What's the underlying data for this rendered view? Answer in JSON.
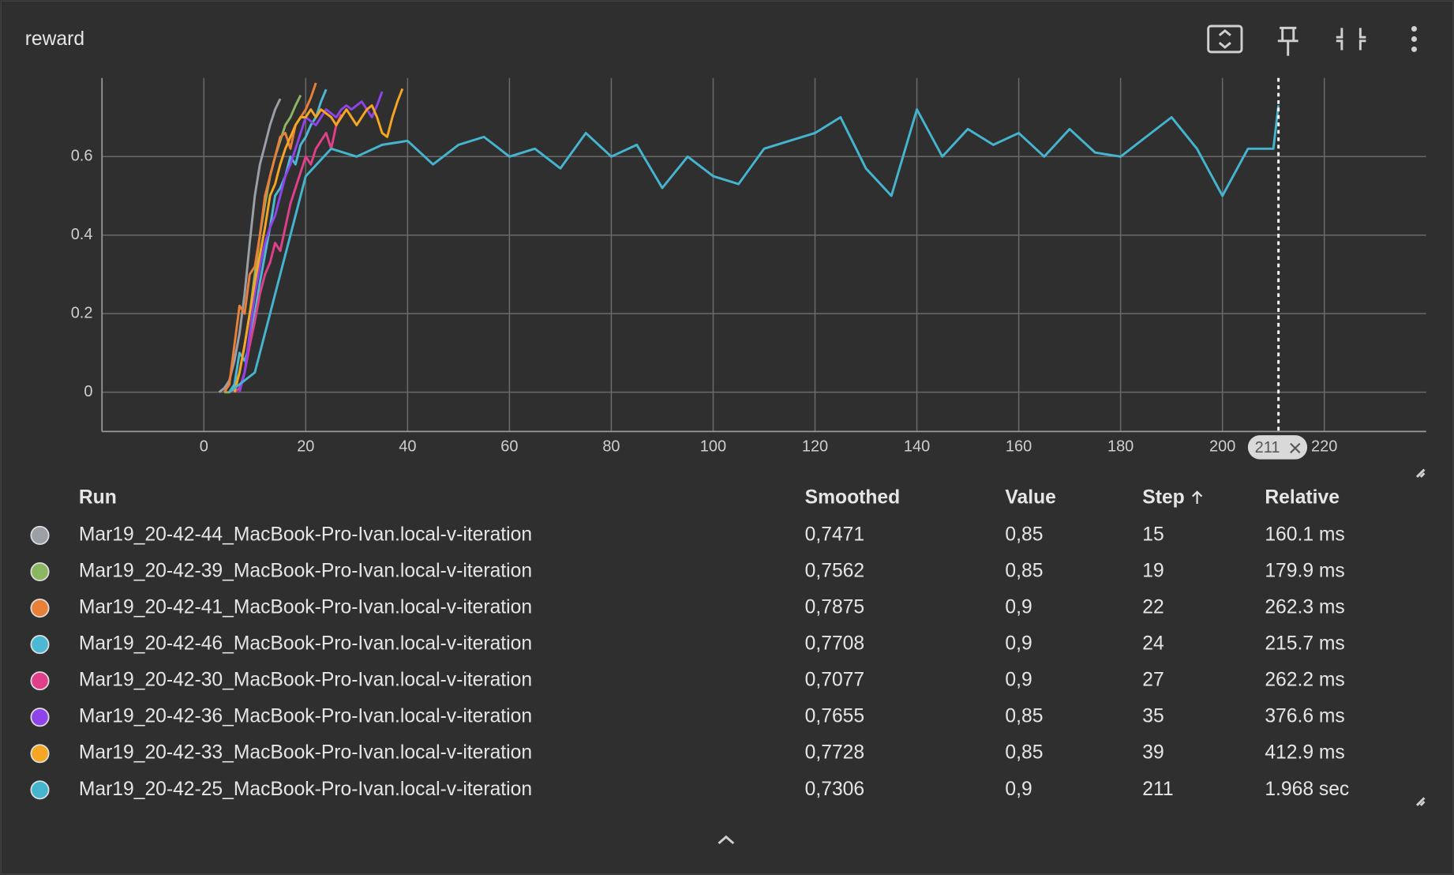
{
  "panel_title": "reward",
  "chart_data": {
    "type": "line",
    "xlim": [
      -20,
      240
    ],
    "xticks": [
      0,
      20,
      40,
      60,
      80,
      100,
      120,
      140,
      160,
      180,
      200,
      220
    ],
    "ylim": [
      -0.1,
      0.8
    ],
    "yticks": [
      0,
      0.2,
      0.4,
      0.6
    ],
    "grid": true,
    "hover_step": 211,
    "series": [
      {
        "name": "Mar19_20-42-44_MacBook-Pro-Ivan.local-v-iteration",
        "color": "#9aa0a6",
        "x": [
          3,
          4,
          5,
          6,
          7,
          8,
          9,
          10,
          11,
          12,
          13,
          14,
          15
        ],
        "values": [
          0,
          0.01,
          0.03,
          0.08,
          0.15,
          0.25,
          0.38,
          0.5,
          0.58,
          0.63,
          0.68,
          0.72,
          0.7471
        ]
      },
      {
        "name": "Mar19_20-42-39_MacBook-Pro-Ivan.local-v-iteration",
        "color": "#8ab661",
        "x": [
          4,
          5,
          6,
          7,
          8,
          9,
          10,
          11,
          12,
          13,
          14,
          15,
          16,
          17,
          18,
          19
        ],
        "values": [
          0,
          0,
          0.01,
          0.05,
          0.12,
          0.2,
          0.3,
          0.4,
          0.48,
          0.55,
          0.6,
          0.64,
          0.68,
          0.7,
          0.73,
          0.7562
        ]
      },
      {
        "name": "Mar19_20-42-41_MacBook-Pro-Ivan.local-v-iteration",
        "color": "#e8803a",
        "x": [
          4,
          5,
          6,
          7,
          8,
          9,
          10,
          11,
          12,
          13,
          14,
          15,
          16,
          17,
          18,
          19,
          20,
          21,
          22
        ],
        "values": [
          0,
          0.02,
          0.12,
          0.22,
          0.2,
          0.3,
          0.32,
          0.4,
          0.5,
          0.55,
          0.6,
          0.65,
          0.66,
          0.62,
          0.68,
          0.7,
          0.72,
          0.75,
          0.7875
        ]
      },
      {
        "name": "Mar19_20-42-46_MacBook-Pro-Ivan.local-v-iteration",
        "color": "#4bb8d4",
        "x": [
          5,
          6,
          7,
          8,
          9,
          10,
          11,
          12,
          13,
          14,
          15,
          16,
          17,
          18,
          19,
          20,
          21,
          22,
          23,
          24
        ],
        "values": [
          0,
          0.02,
          0.1,
          0.08,
          0.12,
          0.2,
          0.28,
          0.35,
          0.42,
          0.5,
          0.52,
          0.55,
          0.6,
          0.58,
          0.63,
          0.65,
          0.68,
          0.7,
          0.74,
          0.7708
        ]
      },
      {
        "name": "Mar19_20-42-30_MacBook-Pro-Ivan.local-v-iteration",
        "color": "#e0408a",
        "x": [
          6,
          7,
          8,
          9,
          10,
          11,
          12,
          13,
          14,
          15,
          16,
          17,
          18,
          19,
          20,
          21,
          22,
          23,
          24,
          25,
          26,
          27
        ],
        "values": [
          0,
          0.01,
          0.05,
          0.12,
          0.18,
          0.25,
          0.3,
          0.33,
          0.38,
          0.36,
          0.42,
          0.48,
          0.52,
          0.56,
          0.6,
          0.58,
          0.62,
          0.64,
          0.66,
          0.62,
          0.68,
          0.7077
        ]
      },
      {
        "name": "Mar19_20-42-36_MacBook-Pro-Ivan.local-v-iteration",
        "color": "#8e44e8",
        "x": [
          7,
          8,
          9,
          10,
          11,
          12,
          13,
          14,
          15,
          16,
          17,
          18,
          19,
          20,
          21,
          22,
          23,
          24,
          25,
          26,
          27,
          28,
          29,
          30,
          31,
          32,
          33,
          34,
          35
        ],
        "values": [
          0,
          0.05,
          0.15,
          0.25,
          0.32,
          0.38,
          0.42,
          0.45,
          0.5,
          0.55,
          0.58,
          0.62,
          0.66,
          0.7,
          0.69,
          0.68,
          0.7,
          0.72,
          0.71,
          0.7,
          0.72,
          0.73,
          0.72,
          0.73,
          0.74,
          0.72,
          0.7,
          0.73,
          0.7655
        ]
      },
      {
        "name": "Mar19_20-42-33_MacBook-Pro-Ivan.local-v-iteration",
        "color": "#f5a623",
        "x": [
          6,
          7,
          8,
          9,
          10,
          11,
          12,
          13,
          14,
          15,
          16,
          17,
          18,
          19,
          20,
          21,
          22,
          23,
          24,
          25,
          26,
          27,
          28,
          29,
          30,
          31,
          32,
          33,
          34,
          35,
          36,
          37,
          38,
          39
        ],
        "values": [
          0,
          0.05,
          0.12,
          0.2,
          0.28,
          0.35,
          0.42,
          0.5,
          0.53,
          0.58,
          0.62,
          0.65,
          0.68,
          0.7,
          0.7,
          0.72,
          0.7,
          0.72,
          0.71,
          0.7,
          0.68,
          0.7,
          0.72,
          0.7,
          0.68,
          0.7,
          0.72,
          0.73,
          0.7,
          0.66,
          0.65,
          0.7,
          0.74,
          0.7728
        ]
      },
      {
        "name": "Mar19_20-42-25_MacBook-Pro-Ivan.local-v-iteration",
        "color": "#45b5cf",
        "x": [
          5,
          10,
          15,
          20,
          25,
          30,
          35,
          40,
          45,
          50,
          55,
          60,
          65,
          70,
          75,
          80,
          85,
          90,
          95,
          100,
          105,
          110,
          115,
          120,
          125,
          130,
          135,
          140,
          145,
          150,
          155,
          160,
          165,
          170,
          175,
          180,
          185,
          190,
          195,
          200,
          205,
          210,
          211
        ],
        "values": [
          0,
          0.05,
          0.3,
          0.55,
          0.62,
          0.6,
          0.63,
          0.64,
          0.58,
          0.63,
          0.65,
          0.6,
          0.62,
          0.57,
          0.66,
          0.6,
          0.63,
          0.52,
          0.6,
          0.55,
          0.53,
          0.62,
          0.64,
          0.66,
          0.7,
          0.57,
          0.5,
          0.72,
          0.6,
          0.67,
          0.63,
          0.66,
          0.6,
          0.67,
          0.61,
          0.6,
          0.65,
          0.7,
          0.62,
          0.5,
          0.62,
          0.62,
          0.7306
        ]
      }
    ]
  },
  "table": {
    "headers": [
      "Run",
      "Smoothed",
      "Value",
      "Step",
      "Relative"
    ],
    "rows": [
      {
        "smoothed": "0,7471",
        "value": "0,85",
        "step": "15",
        "relative": "160.1 ms"
      },
      {
        "smoothed": "0,7562",
        "value": "0,85",
        "step": "19",
        "relative": "179.9 ms"
      },
      {
        "smoothed": "0,7875",
        "value": "0,9",
        "step": "22",
        "relative": "262.3 ms"
      },
      {
        "smoothed": "0,7708",
        "value": "0,9",
        "step": "24",
        "relative": "215.7 ms"
      },
      {
        "smoothed": "0,7077",
        "value": "0,9",
        "step": "27",
        "relative": "262.2 ms"
      },
      {
        "smoothed": "0,7655",
        "value": "0,85",
        "step": "35",
        "relative": "376.6 ms"
      },
      {
        "smoothed": "0,7728",
        "value": "0,85",
        "step": "39",
        "relative": "412.9 ms"
      },
      {
        "smoothed": "0,7306",
        "value": "0,9",
        "step": "211",
        "relative": "1.968 sec"
      }
    ]
  }
}
